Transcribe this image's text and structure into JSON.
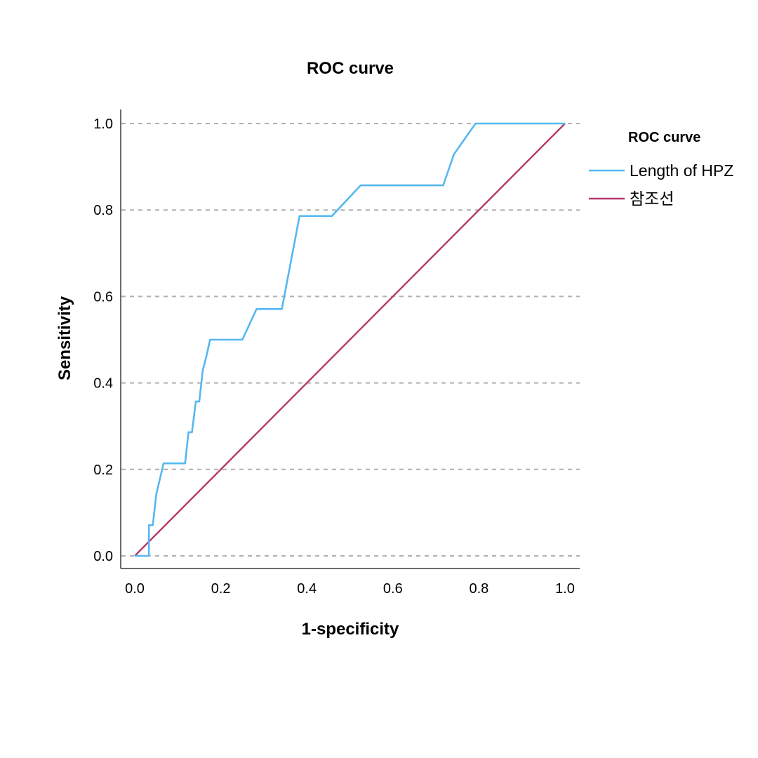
{
  "chart_data": {
    "type": "line",
    "title": "ROC curve",
    "xlabel": "1-specificity",
    "ylabel": "Sensitivity",
    "xlim": [
      0,
      1
    ],
    "ylim": [
      0,
      1
    ],
    "x_ticks": [
      "0.0",
      "0.2",
      "0.4",
      "0.6",
      "0.8",
      "1.0"
    ],
    "y_ticks": [
      "0.0",
      "0.2",
      "0.4",
      "0.6",
      "0.8",
      "1.0"
    ],
    "grid": "horizontal dashed",
    "legend": {
      "title": "ROC curve",
      "position": "right"
    },
    "series": [
      {
        "name": "Length of HPZ",
        "color": "#55b8f0",
        "points": [
          [
            0.0,
            0.0
          ],
          [
            0.033,
            0.0
          ],
          [
            0.033,
            0.071
          ],
          [
            0.042,
            0.071
          ],
          [
            0.05,
            0.143
          ],
          [
            0.067,
            0.214
          ],
          [
            0.117,
            0.214
          ],
          [
            0.125,
            0.286
          ],
          [
            0.133,
            0.286
          ],
          [
            0.142,
            0.357
          ],
          [
            0.15,
            0.357
          ],
          [
            0.158,
            0.429
          ],
          [
            0.167,
            0.464
          ],
          [
            0.175,
            0.5
          ],
          [
            0.25,
            0.5
          ],
          [
            0.283,
            0.571
          ],
          [
            0.342,
            0.571
          ],
          [
            0.383,
            0.786
          ],
          [
            0.458,
            0.786
          ],
          [
            0.525,
            0.857
          ],
          [
            0.717,
            0.857
          ],
          [
            0.742,
            0.929
          ],
          [
            0.792,
            1.0
          ],
          [
            1.0,
            1.0
          ]
        ]
      },
      {
        "name": "참조선",
        "color": "#b5396a",
        "points": [
          [
            0.0,
            0.0
          ],
          [
            1.0,
            1.0
          ]
        ]
      }
    ]
  }
}
